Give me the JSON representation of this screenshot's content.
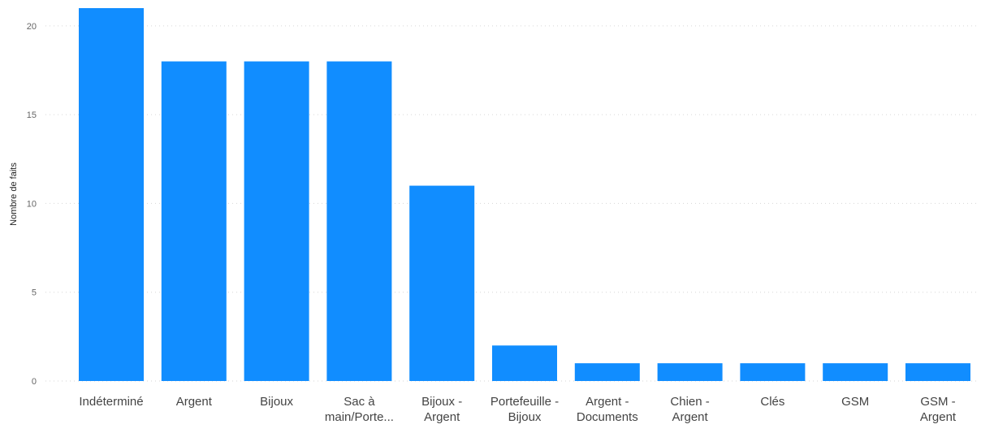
{
  "chart_data": {
    "type": "bar",
    "title": "",
    "xlabel": "",
    "ylabel": "Nombre de faits",
    "categories": [
      [
        "Indéterminé"
      ],
      [
        "Argent"
      ],
      [
        "Bijoux"
      ],
      [
        "Sac à",
        "main/Porte..."
      ],
      [
        "Bijoux -",
        "Argent"
      ],
      [
        "Portefeuille -",
        "Bijoux"
      ],
      [
        "Argent -",
        "Documents"
      ],
      [
        "Chien -",
        "Argent"
      ],
      [
        "Clés"
      ],
      [
        "GSM"
      ],
      [
        "GSM -",
        "Argent"
      ]
    ],
    "values": [
      21,
      18,
      18,
      18,
      11,
      2,
      1,
      1,
      1,
      1,
      1
    ],
    "ylim": [
      0,
      21
    ],
    "yticks": [
      0,
      5,
      10,
      15,
      20
    ],
    "grid": true,
    "bar_color": "#118DFF",
    "grid_color": "#d6d6d6"
  }
}
